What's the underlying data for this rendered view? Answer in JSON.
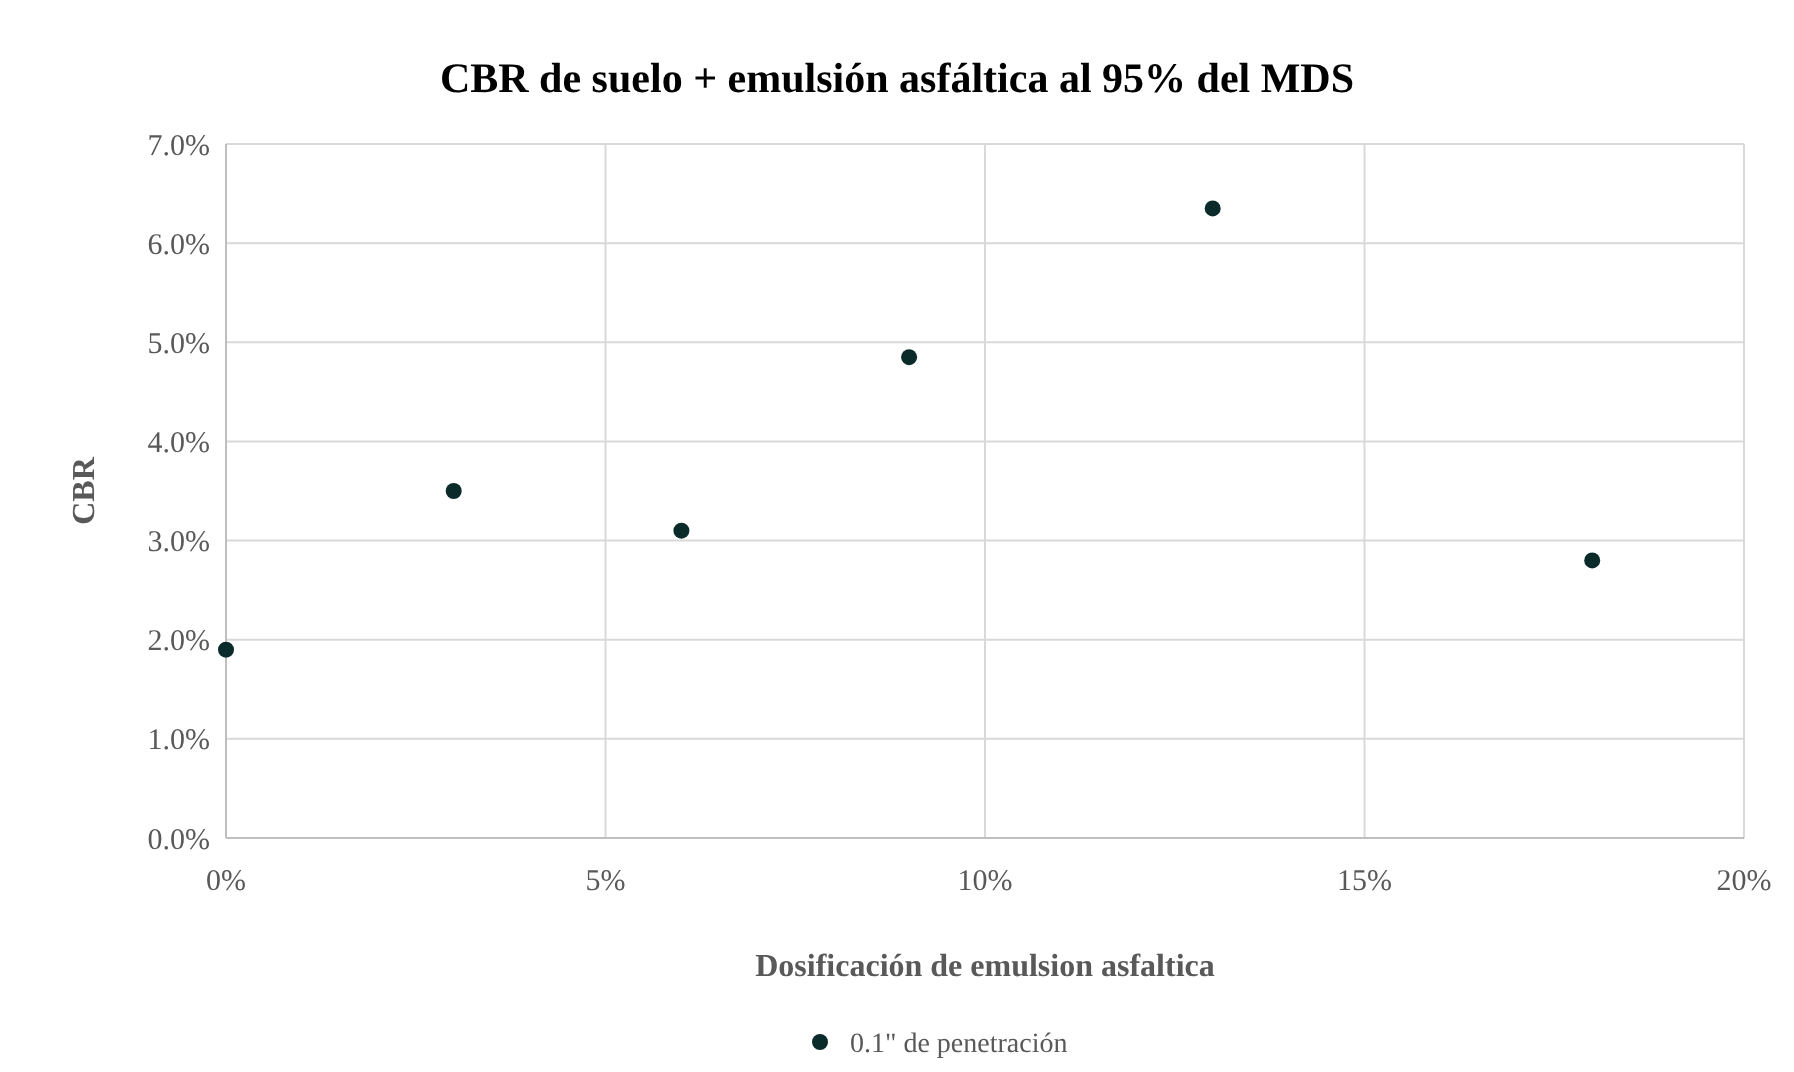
{
  "chart_data": {
    "type": "scatter",
    "title": "CBR de suelo + emulsión  asfáltica al 95% del MDS",
    "xlabel": "Dosificación de emulsion asfaltica",
    "ylabel": "CBR",
    "x": [
      0,
      3,
      6,
      9,
      13,
      18
    ],
    "series": [
      {
        "name": "0.1\" de penetración",
        "color": "#0b2a2a",
        "values": [
          1.9,
          3.5,
          3.1,
          4.85,
          6.35,
          2.8
        ]
      }
    ],
    "xlim": [
      0,
      20
    ],
    "xticks": [
      {
        "value": 0,
        "label": "0%"
      },
      {
        "value": 5,
        "label": "5%"
      },
      {
        "value": 10,
        "label": "10%"
      },
      {
        "value": 15,
        "label": "15%"
      },
      {
        "value": 20,
        "label": "20%"
      }
    ],
    "ylim": [
      0,
      7
    ],
    "yticks": [
      {
        "value": 0,
        "label": "0.0%"
      },
      {
        "value": 1,
        "label": "1.0%"
      },
      {
        "value": 2,
        "label": "2.0%"
      },
      {
        "value": 3,
        "label": "3.0%"
      },
      {
        "value": 4,
        "label": "4.0%"
      },
      {
        "value": 5,
        "label": "5.0%"
      },
      {
        "value": 6,
        "label": "6.0%"
      },
      {
        "value": 7,
        "label": "7.0%"
      }
    ],
    "grid": true,
    "legend": "bottom",
    "marker": "circle"
  }
}
